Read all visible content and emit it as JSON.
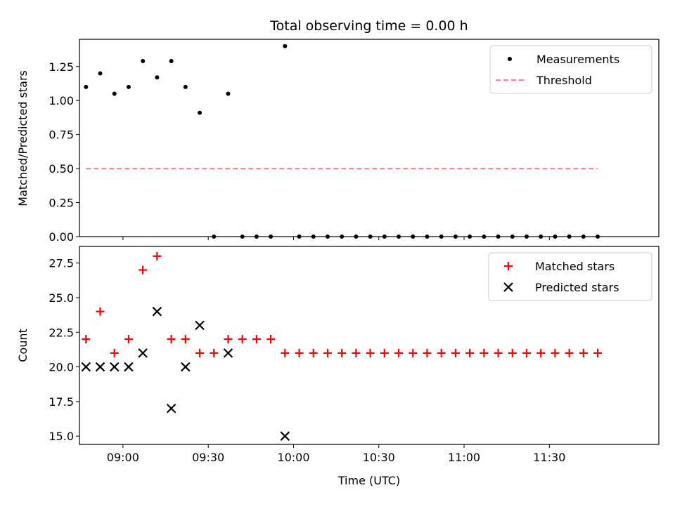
{
  "chart_data": [
    {
      "type": "scatter",
      "title": "Total observing time = 0.00 h",
      "xlabel": "",
      "ylabel": "Matched/Predicted stars",
      "ylim": [
        0,
        1.45
      ],
      "yticks": [
        "0.00",
        "0.25",
        "0.50",
        "0.75",
        "1.00",
        "1.25"
      ],
      "xlim": [
        "08:48",
        "12:07"
      ],
      "legend_position": "top-right",
      "series": [
        {
          "name": "Measurements",
          "marker": "dot",
          "color": "#000000",
          "points": [
            [
              "08:47",
              1.1
            ],
            [
              "08:52",
              1.2
            ],
            [
              "08:57",
              1.05
            ],
            [
              "09:02",
              1.1
            ],
            [
              "09:07",
              1.29
            ],
            [
              "09:12",
              1.17
            ],
            [
              "09:17",
              1.29
            ],
            [
              "09:22",
              1.1
            ],
            [
              "09:27",
              0.91
            ],
            [
              "09:32",
              0.0
            ],
            [
              "09:37",
              1.05
            ],
            [
              "09:42",
              0.0
            ],
            [
              "09:47",
              0.0
            ],
            [
              "09:52",
              0.0
            ],
            [
              "09:57",
              1.4
            ],
            [
              "10:02",
              0.0
            ],
            [
              "10:07",
              0.0
            ],
            [
              "10:12",
              0.0
            ],
            [
              "10:17",
              0.0
            ],
            [
              "10:22",
              0.0
            ],
            [
              "10:27",
              0.0
            ],
            [
              "10:32",
              0.0
            ],
            [
              "10:37",
              0.0
            ],
            [
              "10:42",
              0.0
            ],
            [
              "10:47",
              0.0
            ],
            [
              "10:52",
              0.0
            ],
            [
              "10:57",
              0.0
            ],
            [
              "11:02",
              0.0
            ],
            [
              "11:07",
              0.0
            ],
            [
              "11:12",
              0.0
            ],
            [
              "11:17",
              0.0
            ],
            [
              "11:22",
              0.0
            ],
            [
              "11:27",
              0.0
            ],
            [
              "11:32",
              0.0
            ],
            [
              "11:37",
              0.0
            ],
            [
              "11:42",
              0.0
            ],
            [
              "11:47",
              0.0
            ]
          ]
        },
        {
          "name": "Threshold",
          "style": "dashed",
          "color": "#ff7f7f",
          "points": [
            [
              "08:47",
              0.5
            ],
            [
              "11:47",
              0.5
            ]
          ]
        }
      ]
    },
    {
      "type": "scatter",
      "title": "",
      "xlabel": "Time (UTC)",
      "ylabel": "Count",
      "ylim": [
        14.4,
        28.7
      ],
      "yticks": [
        "15.0",
        "17.5",
        "20.0",
        "22.5",
        "25.0",
        "27.5"
      ],
      "xlim": [
        "08:48",
        "12:07"
      ],
      "xticks": [
        "09:00",
        "09:30",
        "10:00",
        "10:30",
        "11:00",
        "11:30"
      ],
      "legend_position": "top-right",
      "series": [
        {
          "name": "Matched stars",
          "marker": "plus",
          "color": "#ff0000",
          "points": [
            [
              "08:47",
              22
            ],
            [
              "08:52",
              24
            ],
            [
              "08:57",
              21
            ],
            [
              "09:02",
              22
            ],
            [
              "09:07",
              27
            ],
            [
              "09:12",
              28
            ],
            [
              "09:17",
              22
            ],
            [
              "09:22",
              22
            ],
            [
              "09:27",
              21
            ],
            [
              "09:32",
              21
            ],
            [
              "09:37",
              22
            ],
            [
              "09:42",
              22
            ],
            [
              "09:47",
              22
            ],
            [
              "09:52",
              22
            ],
            [
              "09:57",
              21
            ],
            [
              "10:02",
              21
            ],
            [
              "10:07",
              21
            ],
            [
              "10:12",
              21
            ],
            [
              "10:17",
              21
            ],
            [
              "10:22",
              21
            ],
            [
              "10:27",
              21
            ],
            [
              "10:32",
              21
            ],
            [
              "10:37",
              21
            ],
            [
              "10:42",
              21
            ],
            [
              "10:47",
              21
            ],
            [
              "10:52",
              21
            ],
            [
              "10:57",
              21
            ],
            [
              "11:02",
              21
            ],
            [
              "11:07",
              21
            ],
            [
              "11:12",
              21
            ],
            [
              "11:17",
              21
            ],
            [
              "11:22",
              21
            ],
            [
              "11:27",
              21
            ],
            [
              "11:32",
              21
            ],
            [
              "11:37",
              21
            ],
            [
              "11:42",
              21
            ],
            [
              "11:47",
              21
            ]
          ]
        },
        {
          "name": "Predicted stars",
          "marker": "x",
          "color": "#000000",
          "points": [
            [
              "08:47",
              20
            ],
            [
              "08:52",
              20
            ],
            [
              "08:57",
              20
            ],
            [
              "09:02",
              20
            ],
            [
              "09:07",
              21
            ],
            [
              "09:12",
              24
            ],
            [
              "09:17",
              17
            ],
            [
              "09:22",
              20
            ],
            [
              "09:27",
              23
            ],
            [
              "09:37",
              21
            ],
            [
              "09:57",
              15
            ]
          ]
        }
      ]
    }
  ]
}
